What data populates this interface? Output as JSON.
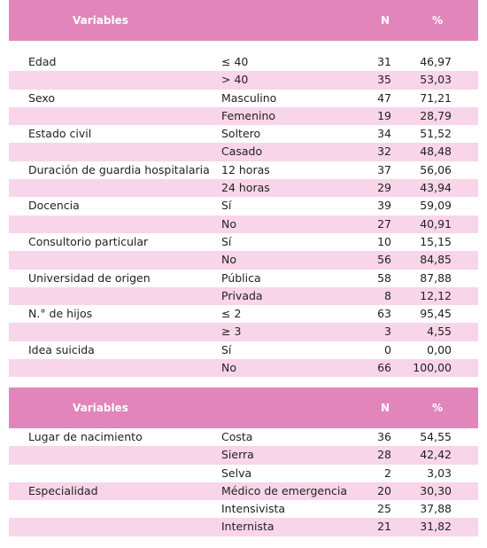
{
  "tables": [
    {
      "header": [
        "Variables",
        "N",
        "%"
      ],
      "rows": [
        [
          "Edad",
          "≤ 40",
          31,
          "46,97"
        ],
        [
          null,
          "> 40",
          35,
          "53,03"
        ],
        [
          "Sexo",
          "Masculino",
          47,
          "71,21"
        ],
        [
          null,
          "Femenino",
          19,
          "28,79"
        ],
        [
          "Estado civil",
          "Soltero",
          34,
          "51,52"
        ],
        [
          null,
          "Casado",
          32,
          "48,48"
        ],
        [
          "Duración de guardia hospitalaria",
          "12 horas",
          37,
          "56,06"
        ],
        [
          null,
          "24 horas",
          29,
          "43,94"
        ],
        [
          "Docencia",
          "Sí",
          39,
          "59,09"
        ],
        [
          null,
          "No",
          27,
          "40,91"
        ],
        [
          "Consultorio particular",
          "Sí",
          10,
          "15,15"
        ],
        [
          null,
          "No",
          56,
          "84,85"
        ],
        [
          "Universidad de origen",
          "Pública",
          58,
          "87,88"
        ],
        [
          null,
          "Privada",
          8,
          "12,12"
        ],
        [
          "N.° de hijos",
          "≤ 2",
          63,
          "95,45"
        ],
        [
          null,
          "≥ 3",
          3,
          "4,55"
        ],
        [
          "Idea suicida",
          "Sí",
          0,
          "0,00"
        ],
        [
          null,
          "No",
          66,
          "100,00"
        ]
      ]
    },
    {
      "header": [
        "Variables",
        "N",
        "%"
      ],
      "rows": [
        [
          "Lugar de nacimiento",
          "Costa",
          36,
          "54,55"
        ],
        [
          null,
          "Sierra",
          28,
          "42,42"
        ],
        [
          null,
          "Selva",
          2,
          "3,03"
        ],
        [
          "Especialidad",
          "Médico de emergencia",
          20,
          "30,30"
        ],
        [
          null,
          "Intensivista",
          25,
          "37,88"
        ],
        [
          null,
          "Internista",
          21,
          "31,82"
        ]
      ]
    }
  ]
}
